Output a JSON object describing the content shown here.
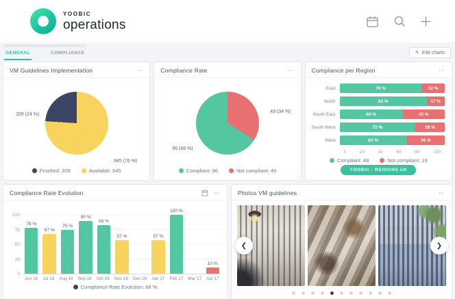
{
  "header": {
    "brand_name": "YOOBIC",
    "brand_product": "operations"
  },
  "tabs": {
    "general": "GENERAL",
    "compliance": "COMPLIANCE"
  },
  "toolbar": {
    "edit_charts": "Edit charts",
    "edit_pencil_glyph": "✎"
  },
  "menu_glyph": "⋯",
  "carousel": {
    "title": "Photos VM guidelines",
    "prev_glyph": "❮",
    "next_glyph": "❯",
    "dots_total": 11,
    "active_dot": 5
  },
  "chart_data": [
    {
      "id": "vm-guidelines-implementation",
      "type": "pie",
      "title": "VM Guidelines Implementation",
      "slices": [
        {
          "name": "Available",
          "value": 645,
          "pct": 76,
          "color": "#f8d45e"
        },
        {
          "name": "Finished",
          "value": 209,
          "pct": 24,
          "color": "#3d4566"
        }
      ],
      "labels": {
        "left": "209 (24 %)",
        "right": "645 (76 %)"
      },
      "legend": [
        {
          "text": "Finished: 209",
          "color": "#3d4566"
        },
        {
          "text": "Available: 645",
          "color": "#f8d45e"
        }
      ]
    },
    {
      "id": "compliance-rate",
      "type": "pie",
      "title": "Compliance Rate",
      "slices": [
        {
          "name": "Not compliant",
          "value": 49,
          "pct": 34,
          "color": "#e97070"
        },
        {
          "name": "Compliant",
          "value": 96,
          "pct": 66,
          "color": "#55c6a2"
        }
      ],
      "labels": {
        "left": "96 (66 %)",
        "right": "49 (34 %)"
      },
      "legend": [
        {
          "text": "Compliant: 96",
          "color": "#55c6a2"
        },
        {
          "text": "Not compliant: 49",
          "color": "#e97070"
        }
      ]
    },
    {
      "id": "compliance-per-region",
      "type": "bar",
      "orientation": "horizontal-stacked",
      "title": "Compliance per Region",
      "categories": [
        "East",
        "North",
        "South East",
        "South West",
        "West"
      ],
      "series": [
        {
          "name": "Compliant",
          "color": "#55c6a2",
          "values": [
            78,
            83,
            60,
            72,
            64
          ]
        },
        {
          "name": "Not compliant",
          "color": "#e97070",
          "values": [
            22,
            17,
            40,
            28,
            36
          ]
        }
      ],
      "x_ticks": [
        "0",
        "20",
        "40",
        "60",
        "80",
        "100"
      ],
      "xlim": [
        0,
        100
      ],
      "legend": [
        {
          "text": "Compliant: 48",
          "color": "#55c6a2"
        },
        {
          "text": "Not compliant: 19",
          "color": "#e97070"
        }
      ],
      "badge": "YOOBIC - REGIONS UK"
    },
    {
      "id": "compliance-rate-evolution",
      "type": "bar",
      "title": "Compliance Rate Evolution",
      "categories": [
        "Jun 16",
        "Jul 16",
        "Aug 16",
        "Sep 16",
        "Oct 16",
        "Nov 16",
        "Dec 16",
        "Jan 17",
        "Feb 17",
        "Mar 17",
        "Apr 17"
      ],
      "values": [
        78,
        67,
        75,
        90,
        83,
        57,
        null,
        57,
        100,
        null,
        10
      ],
      "colors": [
        "#55c6a2",
        "#f8d45e",
        "#55c6a2",
        "#55c6a2",
        "#55c6a2",
        "#f8d45e",
        null,
        "#f8d45e",
        "#55c6a2",
        null,
        "#e97272"
      ],
      "y_ticks": [
        "0",
        "25",
        "50",
        "75",
        "100"
      ],
      "ylim": [
        0,
        100
      ],
      "legend": [
        {
          "text": "Compliance Rate Evolution: 68 %",
          "color": "#3d4566"
        }
      ]
    }
  ]
}
